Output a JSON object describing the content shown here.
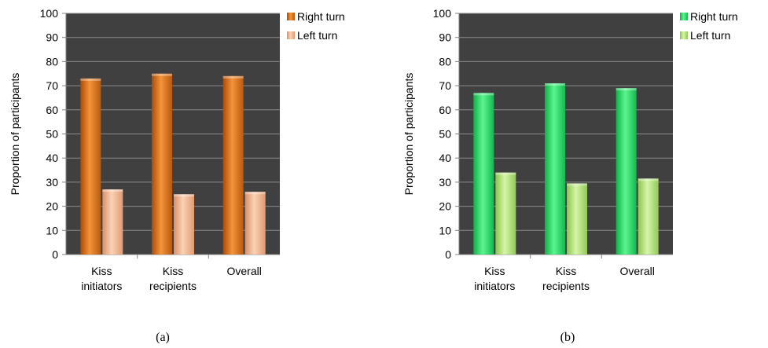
{
  "chart_data": [
    {
      "type": "bar",
      "panel_label": "(a)",
      "categories": [
        [
          "Kiss",
          "initiators"
        ],
        [
          "Kiss",
          "recipients"
        ],
        [
          "Overall"
        ]
      ],
      "series": [
        {
          "name": "Right turn",
          "values": [
            73,
            75,
            74
          ],
          "color": "#e0761a"
        },
        {
          "name": "Left turn",
          "values": [
            27,
            25,
            26
          ],
          "color": "#f2b48a"
        }
      ],
      "ylabel": "Proportion of participants",
      "ylim": [
        0,
        100
      ],
      "yticks": [
        0,
        10,
        20,
        30,
        40,
        50,
        60,
        70,
        80,
        90,
        100
      ],
      "legend": "right",
      "background": "#404040"
    },
    {
      "type": "bar",
      "panel_label": "(b)",
      "categories": [
        [
          "Kiss",
          "initiators"
        ],
        [
          "Kiss",
          "recipients"
        ],
        [
          "Overall"
        ]
      ],
      "series": [
        {
          "name": "Right turn",
          "values": [
            67,
            71,
            69
          ],
          "color": "#22dd66"
        },
        {
          "name": "Left turn",
          "values": [
            34,
            29.5,
            31.5
          ],
          "color": "#b6e67c"
        }
      ],
      "ylabel": "Proportion of participants",
      "ylim": [
        0,
        100
      ],
      "yticks": [
        0,
        10,
        20,
        30,
        40,
        50,
        60,
        70,
        80,
        90,
        100
      ],
      "legend": "right",
      "background": "#404040"
    }
  ]
}
